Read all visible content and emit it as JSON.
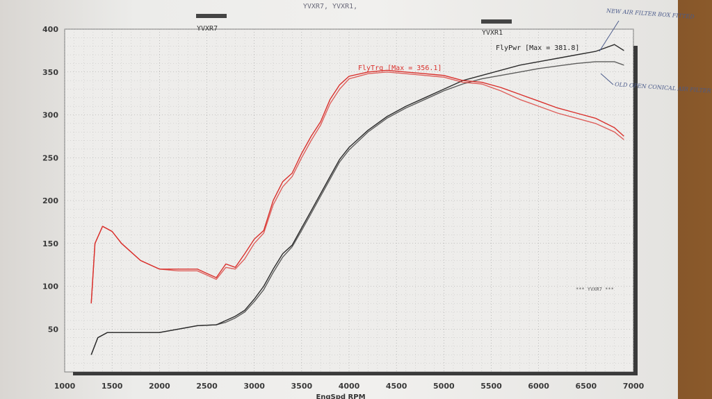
{
  "header": {
    "title": "YVXR7, YVXR1,",
    "legend_left": "YVXR7",
    "legend_right": "YVXR1"
  },
  "annotations": {
    "new_filter": "NEW AIR FILTER BOX FITTED",
    "old_filter": "OLD OPEN CONICAL AIR FILTER",
    "series_tag": "*** YVXR7 ***"
  },
  "labels": {
    "power_max": "FlyPwr [Max = 381.8]",
    "torque_max": "FlyTrq [Max = 356.1]"
  },
  "colors": {
    "power": "#2b2b2b",
    "torque": "#d9302c",
    "grid": "#9a9a9a",
    "paper": "#efeeec"
  },
  "chart_data": {
    "type": "line",
    "title": "YVXR7, YVXR1,",
    "xlabel": "EngSpd RPM",
    "ylabel": "",
    "xlim": [
      1000,
      7000
    ],
    "ylim": [
      0,
      400
    ],
    "x_ticks": [
      1000,
      1500,
      2000,
      2500,
      3000,
      3500,
      4000,
      4500,
      5000,
      5500,
      6000,
      6500,
      7000
    ],
    "y_ticks": [
      50,
      100,
      150,
      200,
      250,
      300,
      350,
      400
    ],
    "grid": true,
    "series": [
      {
        "name": "FlyPwr",
        "run": "YVXR7",
        "color": "#2b2b2b",
        "x": [
          1280,
          1350,
          1450,
          1600,
          1800,
          2000,
          2200,
          2400,
          2600,
          2700,
          2800,
          2900,
          3000,
          3100,
          3200,
          3300,
          3400,
          3500,
          3600,
          3700,
          3800,
          3900,
          4000,
          4200,
          4400,
          4600,
          4800,
          5000,
          5200,
          5400,
          5600,
          5800,
          6000,
          6200,
          6400,
          6600,
          6800,
          6900
        ],
        "values": [
          20,
          40,
          46,
          46,
          46,
          46,
          50,
          54,
          55,
          60,
          65,
          72,
          85,
          100,
          120,
          138,
          148,
          168,
          188,
          208,
          228,
          248,
          262,
          282,
          298,
          310,
          320,
          330,
          340,
          346,
          352,
          358,
          362,
          366,
          370,
          374,
          382,
          375
        ]
      },
      {
        "name": "FlyPwr",
        "run": "YVXR1",
        "color": "#2b2b2b",
        "x": [
          1280,
          1350,
          1450,
          1600,
          1800,
          2000,
          2200,
          2400,
          2600,
          2700,
          2800,
          2900,
          3000,
          3100,
          3200,
          3300,
          3400,
          3500,
          3600,
          3700,
          3800,
          3900,
          4000,
          4200,
          4400,
          4600,
          4800,
          5000,
          5200,
          5400,
          5600,
          5800,
          6000,
          6200,
          6400,
          6600,
          6800,
          6900
        ],
        "values": [
          20,
          40,
          46,
          46,
          46,
          46,
          50,
          54,
          55,
          58,
          63,
          70,
          82,
          96,
          116,
          134,
          146,
          165,
          185,
          205,
          225,
          245,
          259,
          280,
          296,
          308,
          318,
          328,
          336,
          342,
          346,
          350,
          354,
          357,
          360,
          362,
          362,
          358
        ]
      },
      {
        "name": "FlyTrq",
        "run": "YVXR7",
        "color": "#d9302c",
        "x": [
          1280,
          1320,
          1400,
          1500,
          1600,
          1800,
          2000,
          2200,
          2400,
          2500,
          2600,
          2700,
          2800,
          2900,
          3000,
          3100,
          3200,
          3300,
          3400,
          3500,
          3600,
          3700,
          3800,
          3900,
          4000,
          4200,
          4400,
          4600,
          4800,
          5000,
          5200,
          5400,
          5600,
          5800,
          6000,
          6200,
          6400,
          6600,
          6800,
          6900
        ],
        "values": [
          80,
          150,
          170,
          164,
          150,
          130,
          120,
          120,
          120,
          115,
          110,
          126,
          122,
          138,
          155,
          165,
          200,
          222,
          232,
          255,
          275,
          292,
          318,
          335,
          345,
          350,
          352,
          350,
          348,
          346,
          340,
          338,
          332,
          324,
          316,
          308,
          302,
          296,
          285,
          275
        ]
      },
      {
        "name": "FlyTrq",
        "run": "YVXR1",
        "color": "#d9302c",
        "x": [
          1280,
          1320,
          1400,
          1500,
          1600,
          1800,
          2000,
          2200,
          2400,
          2500,
          2600,
          2700,
          2800,
          2900,
          3000,
          3100,
          3200,
          3300,
          3400,
          3500,
          3600,
          3700,
          3800,
          3900,
          4000,
          4200,
          4400,
          4600,
          4800,
          5000,
          5200,
          5400,
          5600,
          5800,
          6000,
          6200,
          6400,
          6600,
          6800,
          6900
        ],
        "values": [
          80,
          150,
          170,
          164,
          150,
          130,
          120,
          118,
          118,
          113,
          108,
          122,
          120,
          132,
          150,
          162,
          195,
          216,
          228,
          250,
          270,
          288,
          313,
          330,
          342,
          348,
          350,
          348,
          346,
          344,
          338,
          336,
          328,
          318,
          310,
          302,
          296,
          290,
          280,
          271
        ]
      }
    ]
  }
}
